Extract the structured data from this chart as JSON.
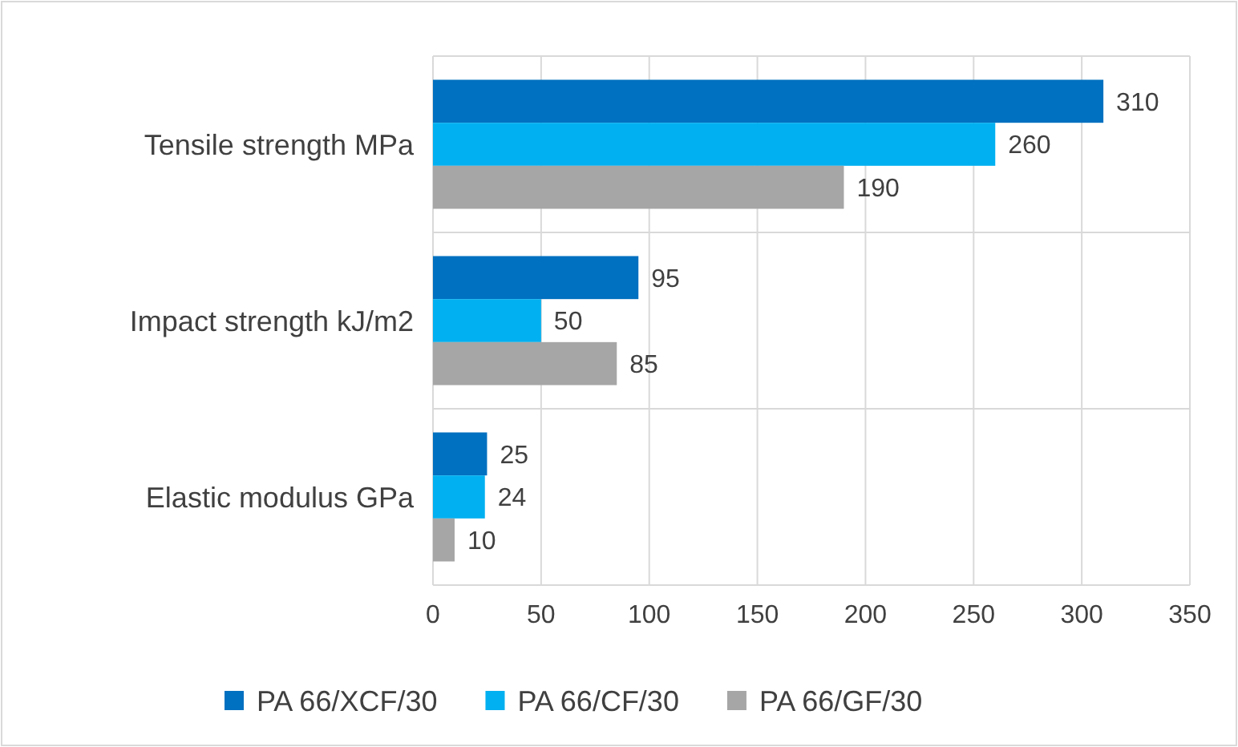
{
  "chart_data": {
    "type": "bar",
    "orientation": "horizontal",
    "categories": [
      "Tensile strength MPa",
      "Impact strength kJ/m2",
      "Elastic modulus GPa"
    ],
    "series": [
      {
        "name": "PA 66/XCF/30",
        "color": "#0070c0",
        "values": [
          310,
          95,
          25
        ]
      },
      {
        "name": "PA 66/CF/30",
        "color": "#00b0f0",
        "values": [
          260,
          50,
          24
        ]
      },
      {
        "name": "PA 66/GF/30",
        "color": "#a6a6a6",
        "values": [
          190,
          85,
          10
        ]
      }
    ],
    "xlim": [
      0,
      350
    ],
    "xticks": [
      0,
      50,
      100,
      150,
      200,
      250,
      300,
      350
    ],
    "grid": true,
    "legend": "bottom",
    "data_labels": true
  }
}
